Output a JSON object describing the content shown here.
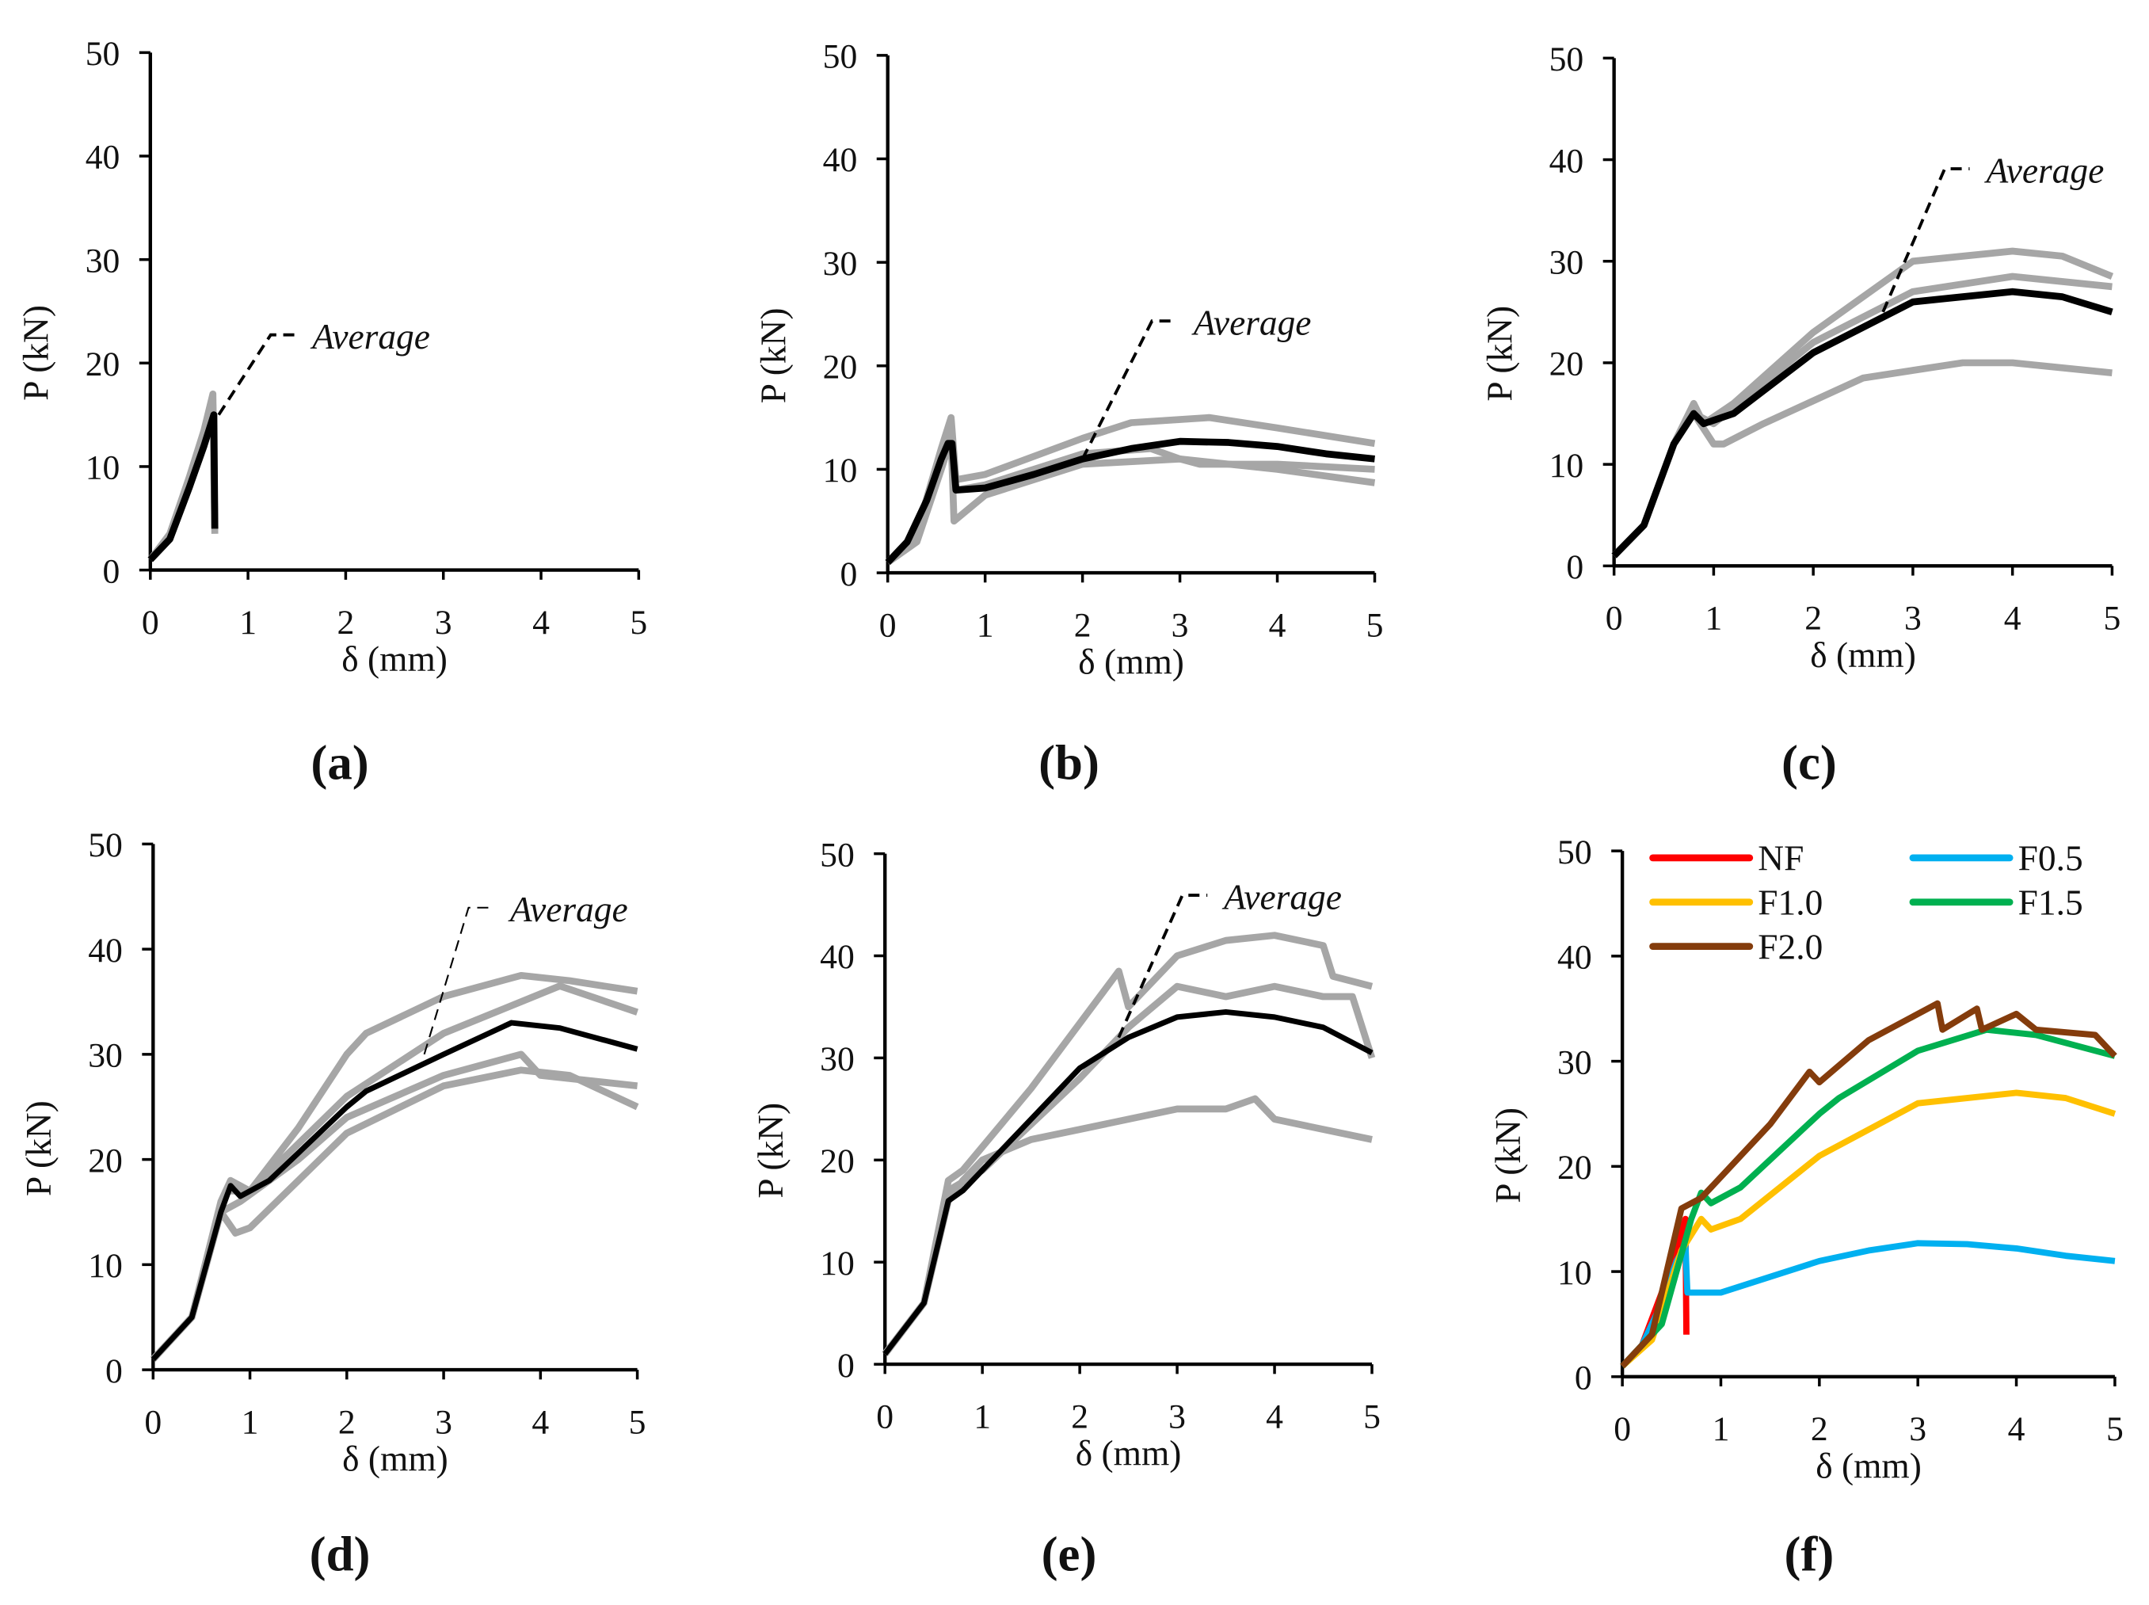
{
  "chart_data": [
    {
      "panel": "(a)",
      "type": "line",
      "xlabel": "δ (mm)",
      "ylabel": "P (kN)",
      "xlim": [
        0,
        5
      ],
      "ylim": [
        0,
        50
      ],
      "xticks": [
        "0",
        "1",
        "2",
        "3",
        "4",
        "5"
      ],
      "yticks": [
        "0",
        "10",
        "20",
        "30",
        "40",
        "50"
      ],
      "annotation": "Average",
      "specimens": [
        [
          [
            0,
            1
          ],
          [
            0.2,
            3.5
          ],
          [
            0.4,
            9
          ],
          [
            0.55,
            13.5
          ],
          [
            0.64,
            17
          ],
          [
            0.66,
            3.5
          ]
        ],
        [
          [
            0,
            1
          ],
          [
            0.2,
            3
          ],
          [
            0.4,
            8
          ],
          [
            0.55,
            12.5
          ],
          [
            0.64,
            16
          ],
          [
            0.66,
            4
          ]
        ]
      ],
      "average": [
        [
          0,
          1
        ],
        [
          0.2,
          3
        ],
        [
          0.4,
          8
        ],
        [
          0.55,
          12
        ],
        [
          0.65,
          15
        ],
        [
          0.66,
          4
        ]
      ],
      "annotation_target": [
        0.7,
        15
      ]
    },
    {
      "panel": "(b)",
      "type": "line",
      "xlabel": "δ (mm)",
      "ylabel": "P (kN)",
      "xlim": [
        0,
        5
      ],
      "ylim": [
        0,
        50
      ],
      "xticks": [
        "0",
        "1",
        "2",
        "3",
        "4",
        "5"
      ],
      "yticks": [
        "0",
        "10",
        "20",
        "30",
        "40",
        "50"
      ],
      "annotation": "Average",
      "specimens": [
        [
          [
            0,
            1
          ],
          [
            0.3,
            4
          ],
          [
            0.55,
            12
          ],
          [
            0.65,
            15
          ],
          [
            0.7,
            9
          ],
          [
            1,
            9.5
          ],
          [
            2,
            13
          ],
          [
            2.5,
            14.5
          ],
          [
            3.3,
            15
          ],
          [
            4,
            14
          ],
          [
            5,
            12.5
          ]
        ],
        [
          [
            0,
            1
          ],
          [
            0.3,
            4
          ],
          [
            0.55,
            11
          ],
          [
            0.65,
            14
          ],
          [
            0.7,
            8
          ],
          [
            1,
            8.5
          ],
          [
            2,
            11.5
          ],
          [
            2.7,
            12
          ],
          [
            3,
            11
          ],
          [
            4,
            10
          ],
          [
            5,
            8.7
          ]
        ],
        [
          [
            0,
            1
          ],
          [
            0.3,
            3
          ],
          [
            0.55,
            10
          ],
          [
            0.65,
            13
          ],
          [
            0.68,
            5
          ],
          [
            1,
            7.5
          ],
          [
            2,
            10.5
          ],
          [
            3,
            11
          ],
          [
            3.2,
            10.5
          ],
          [
            4,
            10.5
          ],
          [
            5,
            10
          ]
        ]
      ],
      "average": [
        [
          0,
          1
        ],
        [
          0.2,
          3
        ],
        [
          0.4,
          7
        ],
        [
          0.55,
          11
        ],
        [
          0.62,
          12.5
        ],
        [
          0.66,
          12.5
        ],
        [
          0.7,
          8
        ],
        [
          1,
          8.2
        ],
        [
          1.5,
          9.5
        ],
        [
          2,
          11
        ],
        [
          2.5,
          12
        ],
        [
          3,
          12.7
        ],
        [
          3.5,
          12.6
        ],
        [
          4,
          12.2
        ],
        [
          4.5,
          11.5
        ],
        [
          5,
          11
        ]
      ],
      "annotation_target": [
        2,
        11
      ]
    },
    {
      "panel": "(c)",
      "type": "line",
      "xlabel": "δ (mm)",
      "ylabel": "P (kN)",
      "xlim": [
        0,
        5
      ],
      "ylim": [
        0,
        50
      ],
      "xticks": [
        "0",
        "1",
        "2",
        "3",
        "4",
        "5"
      ],
      "yticks": [
        "0",
        "10",
        "20",
        "30",
        "40",
        "50"
      ],
      "annotation": "Average",
      "specimens": [
        [
          [
            0,
            1
          ],
          [
            0.3,
            4
          ],
          [
            0.6,
            12
          ],
          [
            0.8,
            16
          ],
          [
            0.9,
            14
          ],
          [
            1.2,
            16
          ],
          [
            2,
            23
          ],
          [
            3,
            30
          ],
          [
            4,
            31
          ],
          [
            4.5,
            30.5
          ],
          [
            5,
            28.5
          ]
        ],
        [
          [
            0,
            1
          ],
          [
            0.3,
            4
          ],
          [
            0.6,
            12
          ],
          [
            0.8,
            15
          ],
          [
            1,
            12
          ],
          [
            1.1,
            12
          ],
          [
            1.5,
            14
          ],
          [
            2.5,
            18.5
          ],
          [
            3.5,
            20
          ],
          [
            4,
            20
          ],
          [
            5,
            19
          ]
        ],
        [
          [
            0,
            1
          ],
          [
            0.3,
            4
          ],
          [
            0.6,
            12
          ],
          [
            0.8,
            15
          ],
          [
            1,
            14
          ],
          [
            2,
            22
          ],
          [
            3,
            27
          ],
          [
            4,
            28.5
          ],
          [
            5,
            27.5
          ]
        ]
      ],
      "average": [
        [
          0,
          1
        ],
        [
          0.3,
          4
        ],
        [
          0.6,
          12
        ],
        [
          0.8,
          15
        ],
        [
          0.9,
          14
        ],
        [
          1.2,
          15
        ],
        [
          2,
          21
        ],
        [
          3,
          26
        ],
        [
          3.5,
          26.5
        ],
        [
          4,
          27
        ],
        [
          4.5,
          26.5
        ],
        [
          5,
          25
        ]
      ],
      "annotation_target": [
        2.7,
        25
      ]
    },
    {
      "panel": "(d)",
      "type": "line",
      "xlabel": "δ (mm)",
      "ylabel": "P (kN)",
      "xlim": [
        0,
        5
      ],
      "ylim": [
        0,
        50
      ],
      "xticks": [
        "0",
        "1",
        "2",
        "3",
        "4",
        "5"
      ],
      "yticks": [
        "0",
        "10",
        "20",
        "30",
        "40",
        "50"
      ],
      "annotation": "Average",
      "specimens": [
        [
          [
            0,
            1
          ],
          [
            0.4,
            5
          ],
          [
            0.7,
            16
          ],
          [
            0.8,
            18
          ],
          [
            1,
            17
          ],
          [
            1.5,
            23
          ],
          [
            2,
            30
          ],
          [
            2.2,
            32
          ],
          [
            3,
            35.5
          ],
          [
            3.8,
            37.5
          ],
          [
            4.3,
            37
          ],
          [
            5,
            36
          ]
        ],
        [
          [
            0,
            1
          ],
          [
            0.4,
            5
          ],
          [
            0.7,
            15
          ],
          [
            0.85,
            13
          ],
          [
            1,
            13.5
          ],
          [
            2,
            22.5
          ],
          [
            3,
            27
          ],
          [
            3.8,
            28.5
          ],
          [
            4.3,
            28
          ],
          [
            5,
            25
          ]
        ],
        [
          [
            0,
            1
          ],
          [
            0.4,
            5
          ],
          [
            0.7,
            15
          ],
          [
            0.9,
            16
          ],
          [
            1.5,
            20
          ],
          [
            2,
            24
          ],
          [
            3,
            28
          ],
          [
            3.8,
            30
          ],
          [
            4,
            28
          ],
          [
            5,
            27
          ]
        ],
        [
          [
            0,
            1
          ],
          [
            0.4,
            5
          ],
          [
            0.75,
            17
          ],
          [
            1,
            17
          ],
          [
            2,
            26
          ],
          [
            3,
            32
          ],
          [
            4.2,
            36.5
          ],
          [
            5,
            34
          ]
        ]
      ],
      "average": [
        [
          0,
          1
        ],
        [
          0.4,
          5
        ],
        [
          0.7,
          15
        ],
        [
          0.8,
          17.5
        ],
        [
          0.9,
          16.5
        ],
        [
          1.2,
          18
        ],
        [
          2,
          25
        ],
        [
          2.2,
          26.5
        ],
        [
          3,
          30
        ],
        [
          3.7,
          33
        ],
        [
          4.2,
          32.5
        ],
        [
          5,
          30.5
        ]
      ],
      "annotation_target": [
        2.8,
        30
      ]
    },
    {
      "panel": "(e)",
      "type": "line",
      "xlabel": "δ (mm)",
      "ylabel": "P (kN)",
      "xlim": [
        0,
        5
      ],
      "ylim": [
        0,
        50
      ],
      "xticks": [
        "0",
        "1",
        "2",
        "3",
        "4",
        "5"
      ],
      "yticks": [
        "0",
        "10",
        "20",
        "30",
        "40",
        "50"
      ],
      "annotation": "Average",
      "specimens": [
        [
          [
            0,
            1
          ],
          [
            0.4,
            6
          ],
          [
            0.65,
            18
          ],
          [
            0.8,
            19
          ],
          [
            1.5,
            27
          ],
          [
            2.4,
            38.5
          ],
          [
            2.5,
            35
          ],
          [
            3,
            40
          ],
          [
            3.5,
            41.5
          ],
          [
            4,
            42
          ],
          [
            4.5,
            41
          ],
          [
            4.6,
            38
          ],
          [
            5,
            37
          ]
        ],
        [
          [
            0,
            1
          ],
          [
            0.4,
            6
          ],
          [
            0.65,
            16
          ],
          [
            0.8,
            18
          ],
          [
            1,
            20
          ],
          [
            1.5,
            22
          ],
          [
            2,
            23
          ],
          [
            2.5,
            24
          ],
          [
            3,
            25
          ],
          [
            3.5,
            25
          ],
          [
            3.8,
            26
          ],
          [
            4,
            24
          ],
          [
            5,
            22
          ]
        ],
        [
          [
            0,
            1
          ],
          [
            0.4,
            6
          ],
          [
            0.65,
            17
          ],
          [
            1,
            19
          ],
          [
            2,
            28
          ],
          [
            2.5,
            33
          ],
          [
            3,
            37
          ],
          [
            3.5,
            36
          ],
          [
            4,
            37
          ],
          [
            4.5,
            36
          ],
          [
            4.8,
            36
          ],
          [
            5,
            30
          ]
        ]
      ],
      "average": [
        [
          0,
          1
        ],
        [
          0.4,
          6
        ],
        [
          0.65,
          16
        ],
        [
          0.8,
          17
        ],
        [
          1.5,
          24
        ],
        [
          2,
          29
        ],
        [
          2.5,
          32
        ],
        [
          3,
          34
        ],
        [
          3.5,
          34.5
        ],
        [
          4,
          34
        ],
        [
          4.5,
          33
        ],
        [
          5,
          30.5
        ]
      ],
      "annotation_target": [
        2.4,
        32
      ]
    },
    {
      "panel": "(f)",
      "type": "line",
      "xlabel": "δ (mm)",
      "ylabel": "P (kN)",
      "xlim": [
        0,
        5
      ],
      "ylim": [
        0,
        50
      ],
      "xticks": [
        "0",
        "1",
        "2",
        "3",
        "4",
        "5"
      ],
      "yticks": [
        "0",
        "10",
        "20",
        "30",
        "40",
        "50"
      ],
      "legend_position": "top",
      "series": [
        {
          "name": "NF",
          "color": "#ff0000",
          "values": [
            [
              0,
              1
            ],
            [
              0.2,
              3
            ],
            [
              0.4,
              8
            ],
            [
              0.55,
              12
            ],
            [
              0.64,
              15
            ],
            [
              0.65,
              4
            ]
          ]
        },
        {
          "name": "F0.5",
          "color": "#00b0f0",
          "values": [
            [
              0,
              1
            ],
            [
              0.2,
              3
            ],
            [
              0.4,
              7
            ],
            [
              0.55,
              11
            ],
            [
              0.64,
              12.5
            ],
            [
              0.66,
              8
            ],
            [
              1,
              8
            ],
            [
              1.5,
              9.5
            ],
            [
              2,
              11
            ],
            [
              2.5,
              12
            ],
            [
              3,
              12.7
            ],
            [
              3.5,
              12.6
            ],
            [
              4,
              12.2
            ],
            [
              4.5,
              11.5
            ],
            [
              5,
              11
            ]
          ]
        },
        {
          "name": "F1.0",
          "color": "#ffc000",
          "values": [
            [
              0,
              1
            ],
            [
              0.3,
              3.5
            ],
            [
              0.6,
              12
            ],
            [
              0.8,
              15
            ],
            [
              0.9,
              14
            ],
            [
              1.2,
              15
            ],
            [
              2,
              21
            ],
            [
              3,
              26
            ],
            [
              3.5,
              26.5
            ],
            [
              4,
              27
            ],
            [
              4.5,
              26.5
            ],
            [
              5,
              25
            ]
          ]
        },
        {
          "name": "F1.5",
          "color": "#00b050",
          "values": [
            [
              0,
              1
            ],
            [
              0.4,
              5
            ],
            [
              0.7,
              15
            ],
            [
              0.8,
              17.5
            ],
            [
              0.9,
              16.5
            ],
            [
              1.2,
              18
            ],
            [
              2,
              25
            ],
            [
              2.2,
              26.5
            ],
            [
              3,
              31
            ],
            [
              3.7,
              33
            ],
            [
              4.2,
              32.5
            ],
            [
              5,
              30.5
            ]
          ]
        },
        {
          "name": "F2.0",
          "color": "#843c0c",
          "values": [
            [
              0,
              1
            ],
            [
              0.3,
              4
            ],
            [
              0.6,
              16
            ],
            [
              0.8,
              17
            ],
            [
              1.5,
              24
            ],
            [
              1.9,
              29
            ],
            [
              2,
              28
            ],
            [
              2.5,
              32
            ],
            [
              3,
              34.5
            ],
            [
              3.2,
              35.5
            ],
            [
              3.25,
              33
            ],
            [
              3.6,
              35
            ],
            [
              3.65,
              33
            ],
            [
              4,
              34.5
            ],
            [
              4.2,
              33
            ],
            [
              4.8,
              32.5
            ],
            [
              5,
              30.5
            ]
          ]
        }
      ]
    }
  ]
}
